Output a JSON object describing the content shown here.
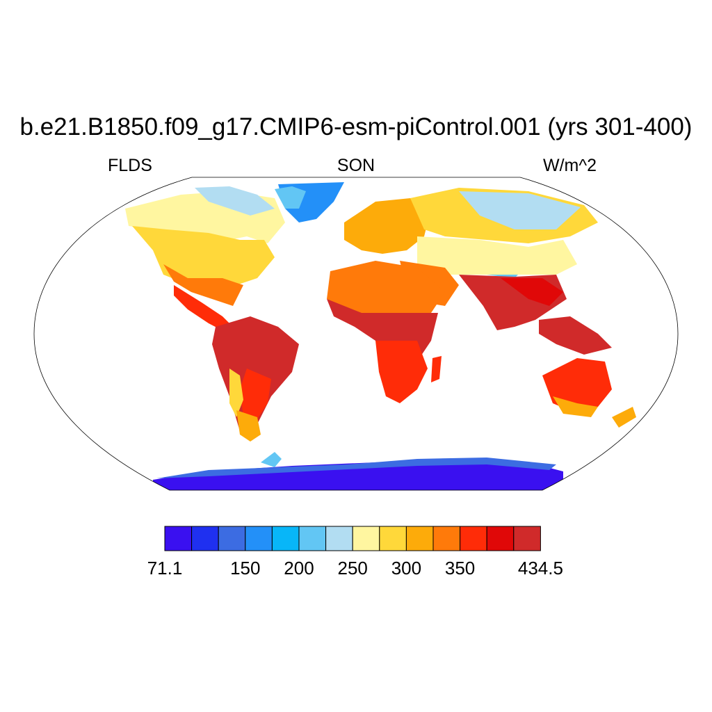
{
  "title": "b.e21.B1850.f09_g17.CMIP6-esm-piControl.001 (yrs 301-400)",
  "left_label": "FLDS",
  "center_label": "SON",
  "right_label": "W/m^2",
  "colorbar": {
    "colors": [
      "#3a10f0",
      "#1f30f0",
      "#3c6ce2",
      "#2390f8",
      "#08b6f8",
      "#62c6f4",
      "#b2ddf2",
      "#fff6a0",
      "#ffd83a",
      "#fdab0a",
      "#ff7a0a",
      "#ff2c08",
      "#e00808",
      "#d02a2a"
    ],
    "ticks": [
      {
        "label": "71.1",
        "pos": 0
      },
      {
        "label": "150",
        "pos": 3
      },
      {
        "label": "200",
        "pos": 5
      },
      {
        "label": "250",
        "pos": 7
      },
      {
        "label": "300",
        "pos": 9
      },
      {
        "label": "350",
        "pos": 11
      },
      {
        "label": "434.5",
        "pos": 14
      }
    ]
  },
  "map_colors": {
    "ocean": "#ffffff",
    "outline": "#000000"
  }
}
